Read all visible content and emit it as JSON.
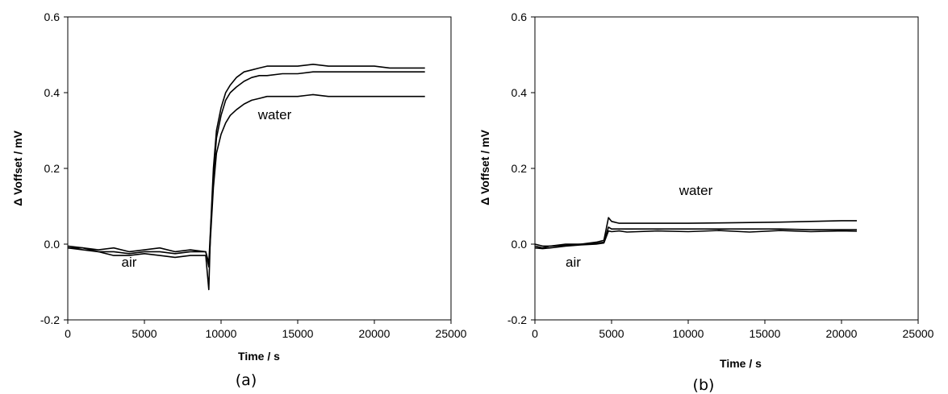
{
  "chart_data": [
    {
      "type": "line",
      "panel_label": "(a)",
      "xlabel": "Time / s",
      "ylabel": "Δ Voffset / mV",
      "xlim": [
        0,
        25000
      ],
      "ylim": [
        -0.2,
        0.6
      ],
      "xticks": [
        "0",
        "5000",
        "10000",
        "15000",
        "20000",
        "25000"
      ],
      "yticks": [
        "0.6",
        "0.4",
        "0.2",
        "0.0",
        "-0.2"
      ],
      "grid": false,
      "annotations": [
        {
          "text": "air",
          "x": 4000,
          "y": -0.06
        },
        {
          "text": "water",
          "x": 13500,
          "y": 0.33
        }
      ],
      "series": [
        {
          "x": [
            0,
            1000,
            2000,
            3000,
            4000,
            5000,
            6000,
            7000,
            8000,
            9000,
            9200,
            9300,
            9500,
            9700,
            10000,
            10300,
            10600,
            11000,
            11500,
            12000,
            12500,
            13000,
            14000,
            15000,
            16000,
            17000,
            18000,
            19000,
            20000,
            21000,
            22000,
            23300
          ],
          "y": [
            -0.005,
            -0.01,
            -0.015,
            -0.01,
            -0.02,
            -0.015,
            -0.01,
            -0.02,
            -0.015,
            -0.02,
            -0.05,
            0.03,
            0.2,
            0.3,
            0.36,
            0.4,
            0.42,
            0.44,
            0.455,
            0.46,
            0.465,
            0.47,
            0.47,
            0.47,
            0.475,
            0.47,
            0.47,
            0.47,
            0.47,
            0.465,
            0.465,
            0.465
          ]
        },
        {
          "x": [
            0,
            1000,
            2000,
            3000,
            4000,
            5000,
            6000,
            7000,
            8000,
            9000,
            9200,
            9300,
            9500,
            9700,
            10000,
            10300,
            10600,
            11000,
            11500,
            12000,
            12500,
            13000,
            14000,
            15000,
            16000,
            17000,
            18000,
            19000,
            20000,
            21000,
            22000,
            23300
          ],
          "y": [
            -0.01,
            -0.015,
            -0.02,
            -0.03,
            -0.03,
            -0.025,
            -0.03,
            -0.035,
            -0.03,
            -0.03,
            -0.12,
            0.02,
            0.18,
            0.28,
            0.34,
            0.38,
            0.4,
            0.415,
            0.43,
            0.44,
            0.445,
            0.445,
            0.45,
            0.45,
            0.455,
            0.455,
            0.455,
            0.455,
            0.455,
            0.455,
            0.455,
            0.455
          ]
        },
        {
          "x": [
            0,
            1000,
            2000,
            3000,
            4000,
            5000,
            6000,
            7000,
            8000,
            9000,
            9200,
            9300,
            9500,
            9700,
            10000,
            10300,
            10600,
            11000,
            11500,
            12000,
            12500,
            13000,
            14000,
            15000,
            16000,
            17000,
            18000,
            19000,
            20000,
            21000,
            22000,
            23300
          ],
          "y": [
            -0.01,
            -0.01,
            -0.02,
            -0.02,
            -0.025,
            -0.02,
            -0.02,
            -0.025,
            -0.02,
            -0.02,
            -0.06,
            0.01,
            0.15,
            0.24,
            0.29,
            0.32,
            0.34,
            0.355,
            0.37,
            0.38,
            0.385,
            0.39,
            0.39,
            0.39,
            0.395,
            0.39,
            0.39,
            0.39,
            0.39,
            0.39,
            0.39,
            0.39
          ]
        }
      ]
    },
    {
      "type": "line",
      "panel_label": "(b)",
      "xlabel": "Time / s",
      "ylabel": "Δ Voffset / mV",
      "xlim": [
        0,
        25000
      ],
      "ylim": [
        -0.2,
        0.6
      ],
      "xticks": [
        "0",
        "5000",
        "10000",
        "15000",
        "20000",
        "25000"
      ],
      "yticks": [
        "0.6",
        "0.4",
        "0.2",
        "0.0",
        "-0.2"
      ],
      "grid": false,
      "annotations": [
        {
          "text": "air",
          "x": 2500,
          "y": -0.06
        },
        {
          "text": "water",
          "x": 10500,
          "y": 0.13
        }
      ],
      "series": [
        {
          "x": [
            0,
            500,
            1000,
            2000,
            3000,
            4000,
            4500,
            4800,
            5000,
            5500,
            6000,
            8000,
            10000,
            12000,
            14000,
            16000,
            18000,
            20000,
            21000
          ],
          "y": [
            0.0,
            -0.005,
            -0.005,
            0.0,
            0.0,
            0.005,
            0.01,
            0.07,
            0.06,
            0.055,
            0.055,
            0.055,
            0.055,
            0.056,
            0.057,
            0.058,
            0.06,
            0.062,
            0.062
          ]
        },
        {
          "x": [
            0,
            500,
            1000,
            2000,
            3000,
            4000,
            4500,
            4800,
            5000,
            5500,
            6000,
            8000,
            10000,
            12000,
            14000,
            16000,
            18000,
            20000,
            21000
          ],
          "y": [
            -0.005,
            -0.01,
            -0.005,
            -0.003,
            0.0,
            0.002,
            0.005,
            0.045,
            0.04,
            0.04,
            0.04,
            0.04,
            0.04,
            0.04,
            0.04,
            0.04,
            0.038,
            0.038,
            0.038
          ]
        },
        {
          "x": [
            0,
            500,
            1000,
            2000,
            3000,
            4000,
            4500,
            4800,
            5000,
            5500,
            6000,
            8000,
            10000,
            12000,
            14000,
            16000,
            18000,
            20000,
            21000
          ],
          "y": [
            -0.01,
            -0.012,
            -0.01,
            -0.005,
            -0.002,
            0.0,
            0.003,
            0.035,
            0.033,
            0.035,
            0.032,
            0.035,
            0.033,
            0.036,
            0.032,
            0.036,
            0.033,
            0.035,
            0.034
          ]
        }
      ]
    }
  ]
}
